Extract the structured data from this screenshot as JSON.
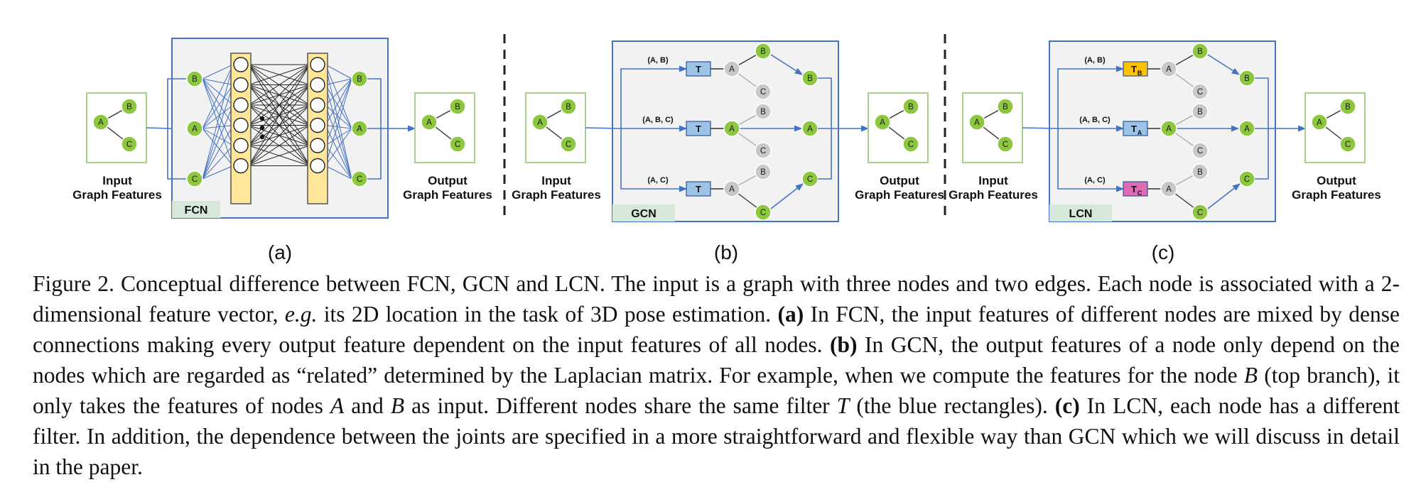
{
  "figure": {
    "panels": [
      {
        "key": "fcn",
        "sublabel": "(a)",
        "tag": "FCN",
        "input_caption": [
          "Input",
          "Graph Features"
        ],
        "output_caption": [
          "Output",
          "Graph Features"
        ]
      },
      {
        "key": "gcn",
        "sublabel": "(b)",
        "tag": "GCN",
        "input_caption": [
          "Input",
          "Graph Features"
        ],
        "output_caption": [
          "Output",
          "Graph Features"
        ],
        "branch_labels": [
          "(A, B)",
          "(A, B, C)",
          "(A, C)"
        ],
        "filter_labels": [
          "T",
          "T",
          "T"
        ]
      },
      {
        "key": "lcn",
        "sublabel": "(c)",
        "tag": "LCN",
        "input_caption": [
          "Input",
          "Graph Features"
        ],
        "output_caption": [
          "Output",
          "Graph Features"
        ],
        "branch_labels": [
          "(A, B)",
          "(A, B, C)",
          "(A, C)"
        ],
        "filter_labels": [
          {
            "main": "T",
            "sub": "B"
          },
          {
            "main": "T",
            "sub": "A"
          },
          {
            "main": "T",
            "sub": "C"
          }
        ]
      }
    ],
    "node_labels": {
      "a": "A",
      "b": "B",
      "c": "C"
    },
    "colors": {
      "node_green": "#8dc63f",
      "node_gray": "#c8c8c8",
      "frame_blue": "#4472c4",
      "panel_bg": "#f2f2f2",
      "tag_bg": "#d6e8d9",
      "graph_frame": "#a9d18e",
      "filter_blue": "#9dc3e6",
      "filter_yellow": "#ffc000",
      "filter_pink": "#e06bb5",
      "fc_column": "#ffe699"
    }
  },
  "caption": {
    "figure_label": "Figure 2.",
    "intro": "Conceptual difference between FCN, GCN and LCN. The input is a graph with three nodes and two edges. Each node is associated with a 2-dimensional feature vector,",
    "eg": "e.g.",
    "intro_tail": "its 2D location in the task of 3D pose estimation.",
    "a_label": "(a)",
    "a_text": "In FCN, the input features of different nodes are mixed by dense connections making every output feature dependent on the input features of all nodes.",
    "b_label": "(b)",
    "b_text_1": "In GCN, the output features of a node only depend on the nodes which are regarded as “related” determined by the Laplacian matrix. For example, when we compute the features for the node",
    "b_var_b": "B",
    "b_text_2": "(top branch), it only takes the features of nodes",
    "b_var_a": "A",
    "b_text_3": "and",
    "b_var_b2": "B",
    "b_text_4": "as input. Different nodes share the same filter",
    "b_var_t": "T",
    "b_text_5": "(the blue rectangles).",
    "c_label": "(c)",
    "c_text": "In LCN, each node has a different filter. In addition, the dependence between the joints are specified in a more straightforward and flexible way than GCN which we will discuss in detail in the paper."
  }
}
